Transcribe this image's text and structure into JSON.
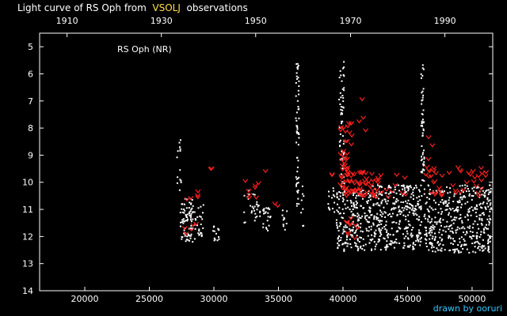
{
  "header": {
    "title_prefix": "Light curve of RS Oph from",
    "title_link": "VSOLJ",
    "title_suffix": "observations"
  },
  "credit": "drawn by ooruri",
  "colors": {
    "background": "#000000",
    "axis": "#ffffff",
    "visual_obs": "#ffffff",
    "fainter_than": "#ff2020",
    "link": "#ffe14a",
    "credit": "#38c8ff"
  },
  "chart_data": {
    "type": "scatter",
    "title": "Light curve of RS Oph from VSOLJ observations",
    "annotation": "RS Oph (NR)",
    "x_axis_bottom": {
      "label": "",
      "range": [
        16500,
        51600
      ],
      "ticks": [
        20000,
        25000,
        30000,
        35000,
        40000,
        45000,
        50000
      ]
    },
    "x_axis_top": {
      "label": "",
      "ticks": [
        {
          "label": "1910",
          "jd": 18627
        },
        {
          "label": "1930",
          "jd": 25932
        },
        {
          "label": "1950",
          "jd": 33237
        },
        {
          "label": "1970",
          "jd": 40588
        },
        {
          "label": "1990",
          "jd": 47893
        }
      ]
    },
    "y_axis": {
      "label": "",
      "range": [
        4.5,
        14
      ],
      "inverted": true,
      "ticks": [
        5,
        6,
        7,
        8,
        9,
        10,
        11,
        12,
        13,
        14
      ]
    },
    "grid": false,
    "series": [
      {
        "name": "",
        "marker": "dot",
        "clusters": [
          {
            "x": [
              27100,
              27500
            ],
            "y": [
              8.0,
              10.3
            ],
            "n": 14
          },
          {
            "x": [
              27400,
              28600
            ],
            "y": [
              10.6,
              12.2
            ],
            "n": 90
          },
          {
            "x": [
              28700,
              29200
            ],
            "y": [
              10.8,
              12.0
            ],
            "n": 20
          },
          {
            "x": [
              29900,
              30500
            ],
            "y": [
              11.6,
              12.2
            ],
            "n": 14
          },
          {
            "x": [
              32300,
              33600
            ],
            "y": [
              10.3,
              11.5
            ],
            "n": 30
          },
          {
            "x": [
              33800,
              34400
            ],
            "y": [
              10.9,
              11.8
            ],
            "n": 22
          },
          {
            "x": [
              35300,
              35700
            ],
            "y": [
              11.0,
              11.8
            ],
            "n": 10
          },
          {
            "x": [
              36350,
              36600
            ],
            "y": [
              5.6,
              11.0
            ],
            "n": 60
          },
          {
            "x": [
              36700,
              37000
            ],
            "y": [
              10.1,
              11.9
            ],
            "n": 8
          },
          {
            "x": [
              38800,
              39400
            ],
            "y": [
              10.2,
              11.1
            ],
            "n": 14
          },
          {
            "x": [
              39700,
              40100
            ],
            "y": [
              5.5,
              10.2
            ],
            "n": 60
          },
          {
            "x": [
              39500,
              42300
            ],
            "y": [
              10.3,
              12.6
            ],
            "n": 220
          },
          {
            "x": [
              42300,
              46100
            ],
            "y": [
              10.1,
              12.5
            ],
            "n": 330
          },
          {
            "x": [
              46050,
              46300
            ],
            "y": [
              5.6,
              10.2
            ],
            "n": 55
          },
          {
            "x": [
              46300,
              51500
            ],
            "y": [
              10.1,
              12.6
            ],
            "n": 420
          }
        ]
      },
      {
        "name": "",
        "marker": "v",
        "clusters": [
          {
            "x": [
              27600,
              28800
            ],
            "y": [
              10.3,
              11.9
            ],
            "n": 10
          },
          {
            "x": [
              29700,
              29900
            ],
            "y": [
              9.4,
              9.5
            ],
            "n": 2
          },
          {
            "x": [
              32300,
              34000
            ],
            "y": [
              9.4,
              10.6
            ],
            "n": 9
          },
          {
            "x": [
              34600,
              35000
            ],
            "y": [
              10.7,
              10.9
            ],
            "n": 2
          },
          {
            "x": [
              38900,
              39200
            ],
            "y": [
              9.6,
              9.8
            ],
            "n": 2
          },
          {
            "x": [
              39800,
              40700
            ],
            "y": [
              7.8,
              10.5
            ],
            "n": 40
          },
          {
            "x": [
              39700,
              42800
            ],
            "y": [
              9.6,
              10.5
            ],
            "n": 60
          },
          {
            "x": [
              40000,
              41200
            ],
            "y": [
              11.3,
              12.1
            ],
            "n": 10
          },
          {
            "x": [
              41200,
              41800
            ],
            "y": [
              6.8,
              8.2
            ],
            "n": 4
          },
          {
            "x": [
              42300,
              45000
            ],
            "y": [
              9.6,
              10.6
            ],
            "n": 16
          },
          {
            "x": [
              46600,
              47200
            ],
            "y": [
              8.2,
              9.3
            ],
            "n": 3
          },
          {
            "x": [
              46200,
              51200
            ],
            "y": [
              9.4,
              10.5
            ],
            "n": 45
          }
        ]
      }
    ]
  }
}
